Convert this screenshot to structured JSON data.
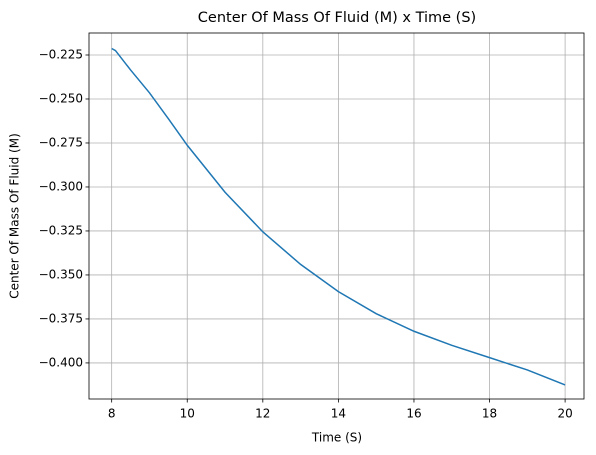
{
  "chart_data": {
    "type": "line",
    "title": "Center Of Mass Of Fluid (M) x Time (S)",
    "x_label": "Time (S)",
    "y_label": "Center Of Mass Of Fluid (M)",
    "x": [
      8,
      8.1,
      8.5,
      9,
      9.5,
      10,
      11,
      12,
      13,
      14,
      15,
      16,
      17,
      18,
      19,
      20
    ],
    "series": [
      {
        "name": "Center Of Mass Of Fluid (M)",
        "color": "#1f77b4",
        "values": [
          -0.2213,
          -0.2225,
          -0.2335,
          -0.2465,
          -0.2612,
          -0.2763,
          -0.303,
          -0.3255,
          -0.344,
          -0.3595,
          -0.372,
          -0.382,
          -0.39,
          -0.397,
          -0.404,
          -0.4125
        ]
      }
    ],
    "xlim": [
      7.4,
      20.5
    ],
    "ylim": [
      -0.4205,
      -0.2125
    ],
    "xticks": [
      8,
      10,
      12,
      14,
      16,
      18,
      20
    ],
    "yticks": [
      {
        "value": -0.225,
        "label": "−0.225"
      },
      {
        "value": -0.25,
        "label": "−0.250"
      },
      {
        "value": -0.275,
        "label": "−0.275"
      },
      {
        "value": -0.3,
        "label": "−0.300"
      },
      {
        "value": -0.325,
        "label": "−0.325"
      },
      {
        "value": -0.35,
        "label": "−0.350"
      },
      {
        "value": -0.375,
        "label": "−0.375"
      },
      {
        "value": -0.4,
        "label": "−0.400"
      }
    ],
    "grid": true
  }
}
